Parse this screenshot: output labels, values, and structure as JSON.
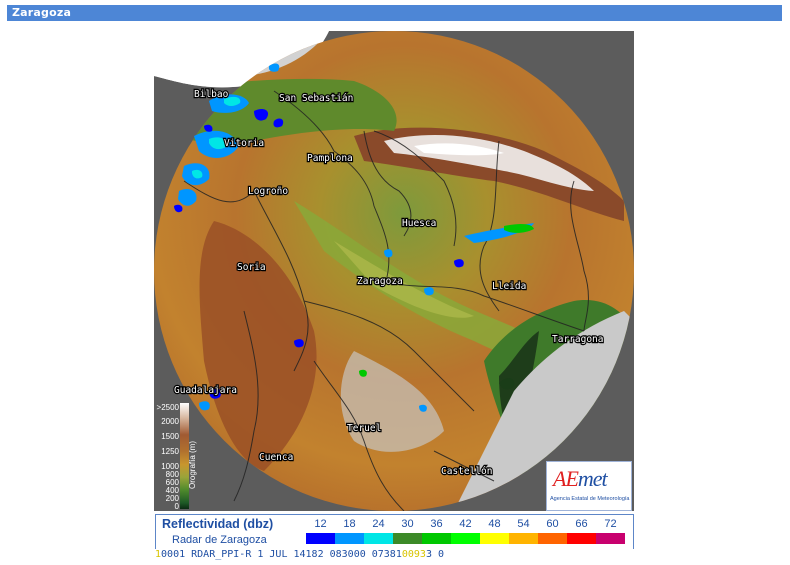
{
  "header": {
    "title": "Zaragoza"
  },
  "map": {
    "copyright": "Agencia Estatal de Meteorología",
    "copyright_symbol": "C",
    "cities": [
      {
        "name": "San Sebastián"
      },
      {
        "name": "Bilbao"
      },
      {
        "name": "Vitoria"
      },
      {
        "name": "Pamplona"
      },
      {
        "name": "Logroño"
      },
      {
        "name": "Huesca"
      },
      {
        "name": "Soria"
      },
      {
        "name": "Zaragoza"
      },
      {
        "name": "Lleida"
      },
      {
        "name": "Tarragona"
      },
      {
        "name": "Guadalajara"
      },
      {
        "name": "Teruel"
      },
      {
        "name": "Cuenca"
      },
      {
        "name": "Castellón"
      }
    ],
    "orography_legend": {
      "axis_label": "Orografía (m)",
      "values": [
        ">2500",
        "2000",
        "1500",
        "1250",
        "1000",
        "800",
        "600",
        "400",
        "200",
        "0"
      ]
    },
    "logo": {
      "text_a": "AE",
      "text_b": "met",
      "subtitle": "Agencia Estatal de Meteorología"
    }
  },
  "legend": {
    "title": "Reflectividad (dbz)",
    "subtitle": "Radar de Zaragoza",
    "scale": [
      {
        "value": "12",
        "color": "#0000ff"
      },
      {
        "value": "18",
        "color": "#0096ff"
      },
      {
        "value": "24",
        "color": "#00e6e6"
      },
      {
        "value": "30",
        "color": "#3c8a28"
      },
      {
        "value": "36",
        "color": "#00c800"
      },
      {
        "value": "42",
        "color": "#00ff00"
      },
      {
        "value": "48",
        "color": "#ffff00"
      },
      {
        "value": "54",
        "color": "#ffb400"
      },
      {
        "value": "60",
        "color": "#ff6400"
      },
      {
        "value": "66",
        "color": "#ff0000"
      },
      {
        "value": "72",
        "color": "#c8006e"
      }
    ]
  },
  "status": {
    "prefix": "1",
    "text": "0001 RDAR_PPI-R    1 JUL 14182 083000 07381",
    "overlay": "0093",
    "suffix": "3 0"
  }
}
